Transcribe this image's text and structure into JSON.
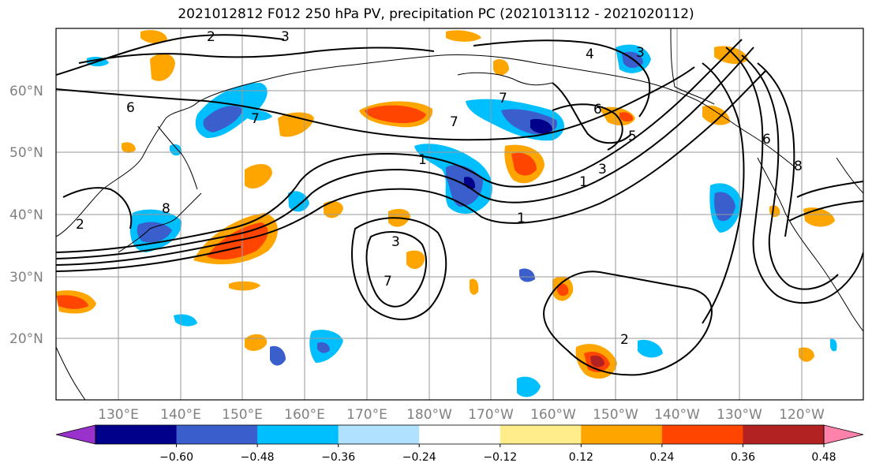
{
  "title": "2021012812 F012 250 hPa PV, precipitation PC (2021013112 - 2021020112)",
  "map": {
    "lat_labels": [
      "60°N",
      "50°N",
      "40°N",
      "30°N",
      "20°N"
    ],
    "lon_labels": [
      "130°E",
      "140°E",
      "150°E",
      "160°E",
      "170°E",
      "180°W",
      "170°W",
      "160°W",
      "150°W",
      "140°W",
      "130°W",
      "120°W"
    ],
    "contour_labels": [
      "2",
      "3",
      "4",
      "3",
      "6",
      "7",
      "7",
      "7",
      "1",
      "1",
      "1",
      "2",
      "3",
      "8",
      "3",
      "2",
      "6",
      "8",
      "5",
      "6",
      "7"
    ]
  },
  "colorbar": {
    "colors": [
      "#9932CC",
      "#00008B",
      "#3A5FCD",
      "#00BFFF",
      "#B0E2FF",
      "#FFFFFF",
      "#FFEC8B",
      "#FFA500",
      "#FF4500",
      "#B22222",
      "#FF82AB"
    ],
    "tick_labels": [
      "−0.60",
      "−0.48",
      "−0.36",
      "−0.24",
      "−0.12",
      "0.12",
      "0.24",
      "0.36",
      "0.48",
      "0.60"
    ]
  },
  "chart_data": {
    "type": "heatmap",
    "title": "2021012812 F012 250 hPa PV, precipitation PC (2021013112 - 2021020112)",
    "xlabel": "",
    "ylabel": "",
    "levels": [
      -0.6,
      -0.48,
      -0.36,
      -0.24,
      -0.12,
      0.12,
      0.24,
      0.36,
      0.48,
      0.6
    ],
    "lon_ticks": [
      "130°E",
      "140°E",
      "150°E",
      "160°E",
      "170°E",
      "180°W",
      "170°W",
      "160°W",
      "150°W",
      "140°W",
      "130°W",
      "120°W"
    ],
    "lat_ticks": [
      "60°N",
      "50°N",
      "40°N",
      "30°N",
      "20°N"
    ],
    "pv_contour_values": [
      1,
      2,
      3,
      4,
      5,
      6,
      7,
      8
    ],
    "grid": true
  }
}
